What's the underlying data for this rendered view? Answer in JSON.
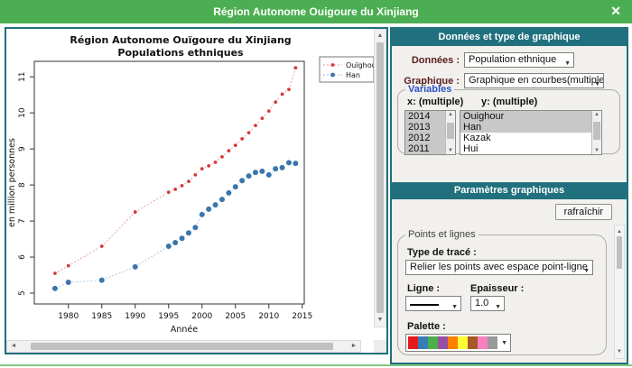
{
  "window": {
    "title": "Région Autonome Ouigoure du Xinjiang",
    "close_glyph": "✕"
  },
  "chart_data": {
    "type": "line",
    "title_line1": "Région Autonome Ouïgoure du Xinjiang",
    "title_line2": "Populations ethniques",
    "xlabel": "Année",
    "ylabel": "en million personnes",
    "x": [
      1978,
      1980,
      1985,
      1990,
      1995,
      1996,
      1997,
      1998,
      1999,
      2000,
      2001,
      2002,
      2003,
      2004,
      2005,
      2006,
      2007,
      2008,
      2009,
      2010,
      2011,
      2012,
      2013,
      2014
    ],
    "series": [
      {
        "name": "Ouïghour",
        "color": "#d43a3a",
        "line_color": "#e89a9a",
        "point_radius": 1.9,
        "values": [
          5.55,
          5.76,
          6.3,
          7.25,
          7.8,
          7.88,
          7.98,
          8.1,
          8.28,
          8.45,
          8.53,
          8.63,
          8.78,
          8.95,
          9.1,
          9.28,
          9.45,
          9.65,
          9.85,
          10.05,
          10.3,
          10.52,
          10.65,
          11.25
        ]
      },
      {
        "name": "Han",
        "color": "#3a76ac",
        "line_color": "#a8c2da",
        "point_radius": 3.0,
        "values": [
          5.13,
          5.3,
          5.36,
          5.73,
          6.3,
          6.4,
          6.52,
          6.67,
          6.82,
          7.18,
          7.33,
          7.45,
          7.6,
          7.78,
          7.95,
          8.12,
          8.25,
          8.35,
          8.38,
          8.28,
          8.45,
          8.48,
          8.62,
          8.6
        ]
      }
    ],
    "x_ticks": [
      1980,
      1985,
      1990,
      1995,
      2000,
      2005,
      2010,
      2015
    ],
    "y_ticks": [
      5,
      6,
      7,
      8,
      9,
      10,
      11
    ],
    "xlim": [
      1974.9,
      2015.3
    ],
    "ylim": [
      4.7,
      11.43
    ],
    "grid": false,
    "legend_position": "top-right-outside"
  },
  "data_panel": {
    "header": "Données et type de graphique",
    "donnees_label": "Données :",
    "donnees_value": "Population ethnique",
    "graphique_label": "Graphique :",
    "graphique_value": "Graphique en courbes(multiple)",
    "variables": {
      "legend": "Variables",
      "x_label": "x: (multiple)",
      "y_label": "y: (multiple)",
      "x_items": [
        {
          "label": "2014",
          "selected": true
        },
        {
          "label": "2013",
          "selected": true
        },
        {
          "label": "2012",
          "selected": true
        },
        {
          "label": "2011",
          "selected": true
        }
      ],
      "y_items": [
        {
          "label": "Ouighour",
          "selected": true
        },
        {
          "label": "Han",
          "selected": true
        },
        {
          "label": "Kazak",
          "selected": false
        },
        {
          "label": "Hui",
          "selected": false
        }
      ]
    }
  },
  "params_panel": {
    "header": "Paramètres graphiques",
    "refresh_button": "rafraîchir",
    "fieldset_legend": "Points et lignes",
    "trace_label": "Type de tracé :",
    "trace_value": "Relier les points avec espace point-ligne",
    "ligne_label": "Ligne :",
    "epaisseur_label": "Epaisseur :",
    "epaisseur_value": "1.0",
    "palette_label": "Palette :",
    "palette_colors": [
      "#e41a1c",
      "#377eb8",
      "#4daf4a",
      "#984ea3",
      "#ff7f00",
      "#ffff33",
      "#a65628",
      "#f781bf",
      "#999999"
    ]
  },
  "glyphs": {
    "caret_down": "▼",
    "up": "▲",
    "down": "▼",
    "left": "◄",
    "right": "►"
  }
}
